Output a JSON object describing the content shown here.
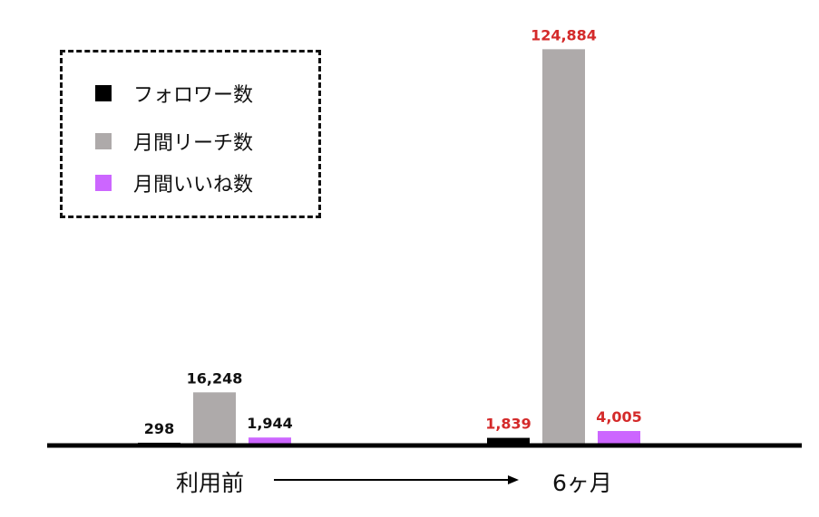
{
  "chart_data": {
    "type": "bar",
    "categories": [
      "利用前",
      "6ヶ月"
    ],
    "arrow": true,
    "series": [
      {
        "name": "フォロワー数",
        "color": "#000000",
        "values": [
          298,
          1839
        ],
        "labels": [
          "298",
          "1,839"
        ]
      },
      {
        "name": "月間リーチ数",
        "color": "#aeaaaa",
        "values": [
          16248,
          124884
        ],
        "labels": [
          "16,248",
          "124,884"
        ]
      },
      {
        "name": "月間いいね数",
        "color": "#cc66ff",
        "values": [
          1944,
          4005
        ],
        "labels": [
          "1,944",
          "4,005"
        ]
      }
    ],
    "label_colors": [
      "#111111",
      "#d42a2a"
    ],
    "ylim": [
      0,
      129000
    ],
    "grid": false,
    "legend_position": "top-left"
  }
}
